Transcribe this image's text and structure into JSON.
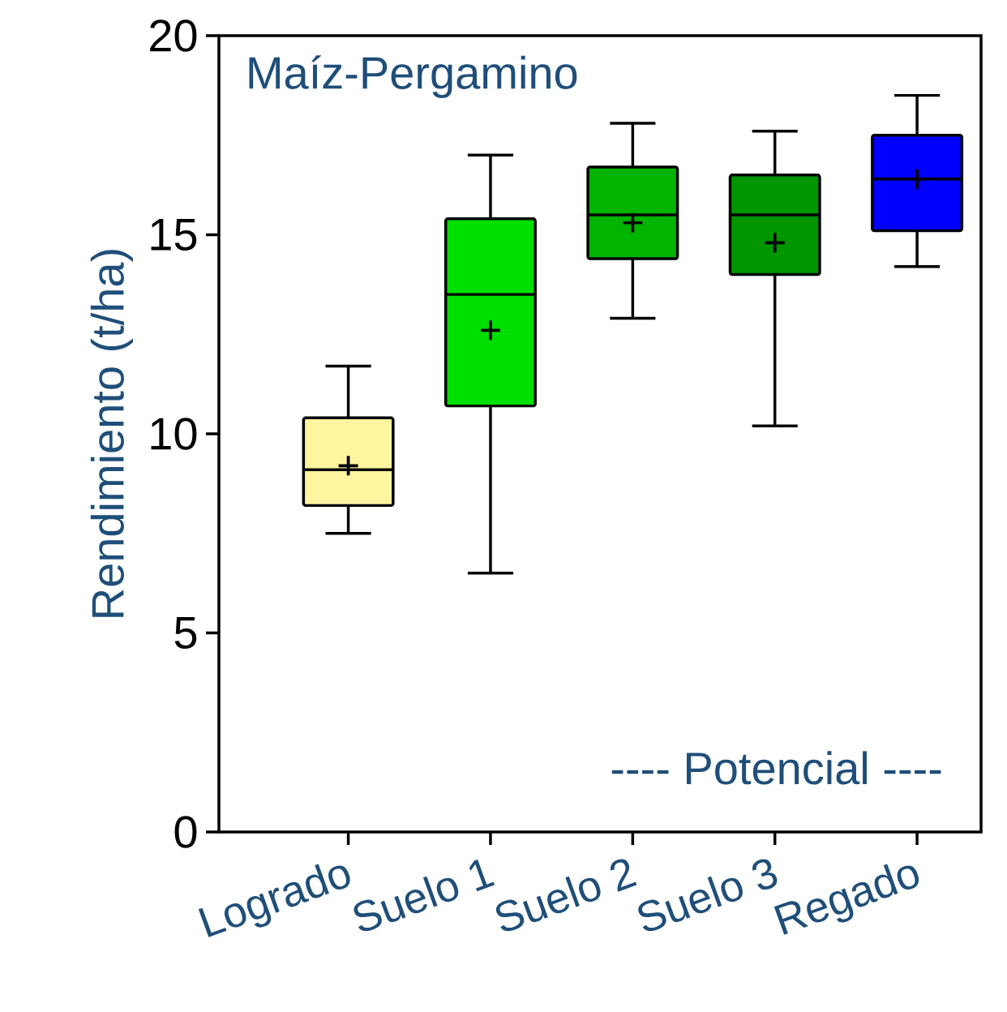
{
  "chart_data": {
    "type": "box",
    "title": "Maíz-Pergamino",
    "ylabel": "Rendimiento (t/ha)",
    "categories": [
      "Logrado",
      "Suelo 1",
      "Suelo 2",
      "Suelo 3",
      "Regado"
    ],
    "colors": [
      "#fff5a0",
      "#00e000",
      "#00b400",
      "#009600",
      "#0000ff"
    ],
    "boxes": [
      {
        "low": 7.5,
        "q1": 8.2,
        "median": 9.1,
        "q3": 10.4,
        "high": 11.7,
        "mean": 9.2
      },
      {
        "low": 6.5,
        "q1": 10.7,
        "median": 13.5,
        "q3": 15.4,
        "high": 17.0,
        "mean": 12.6
      },
      {
        "low": 12.9,
        "q1": 14.4,
        "median": 15.5,
        "q3": 16.7,
        "high": 17.8,
        "mean": 15.3
      },
      {
        "low": 10.2,
        "q1": 14.0,
        "median": 15.5,
        "q3": 16.5,
        "high": 17.6,
        "mean": 14.8
      },
      {
        "low": 14.2,
        "q1": 15.1,
        "median": 16.4,
        "q3": 17.5,
        "high": 18.5,
        "mean": 16.4
      }
    ],
    "ylim": [
      0,
      20
    ],
    "yticks": [
      0,
      5,
      10,
      15,
      20
    ],
    "annotations": [
      "---- Potencial ----"
    ]
  }
}
